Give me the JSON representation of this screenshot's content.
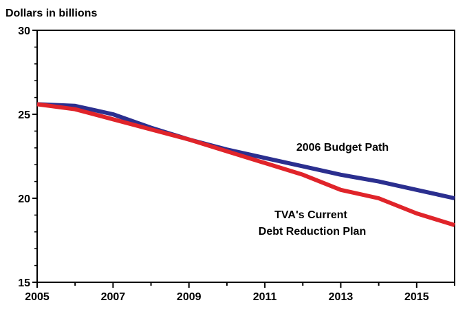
{
  "chart_data": {
    "type": "line",
    "title": "",
    "xlabel": "",
    "ylabel": "Dollars in billions",
    "xlim": [
      2005,
      2016
    ],
    "ylim": [
      15,
      30
    ],
    "grid": false,
    "x_ticks": [
      2005,
      2007,
      2009,
      2011,
      2013,
      2015
    ],
    "y_ticks": [
      15,
      20,
      25,
      30
    ],
    "series": [
      {
        "name": "2006 Budget Path",
        "color": "#2b2f8f",
        "x": [
          2005,
          2006,
          2007,
          2008,
          2009,
          2010,
          2011,
          2012,
          2013,
          2014,
          2015,
          2016
        ],
        "y": [
          25.6,
          25.5,
          25.0,
          24.2,
          23.5,
          22.9,
          22.4,
          21.9,
          21.4,
          21.0,
          20.5,
          20.0
        ]
      },
      {
        "name": "TVA's Current Debt Reduction Plan",
        "color": "#e0242a",
        "x": [
          2005,
          2006,
          2007,
          2008,
          2009,
          2010,
          2011,
          2012,
          2013,
          2014,
          2015,
          2016
        ],
        "y": [
          25.6,
          25.3,
          24.7,
          24.1,
          23.5,
          22.8,
          22.1,
          21.4,
          20.5,
          20.0,
          19.1,
          18.4
        ]
      }
    ],
    "annotations": [
      {
        "text": "2006 Budget Path"
      },
      {
        "lines": [
          "TVA's Current",
          "Debt Reduction Plan"
        ]
      }
    ]
  }
}
